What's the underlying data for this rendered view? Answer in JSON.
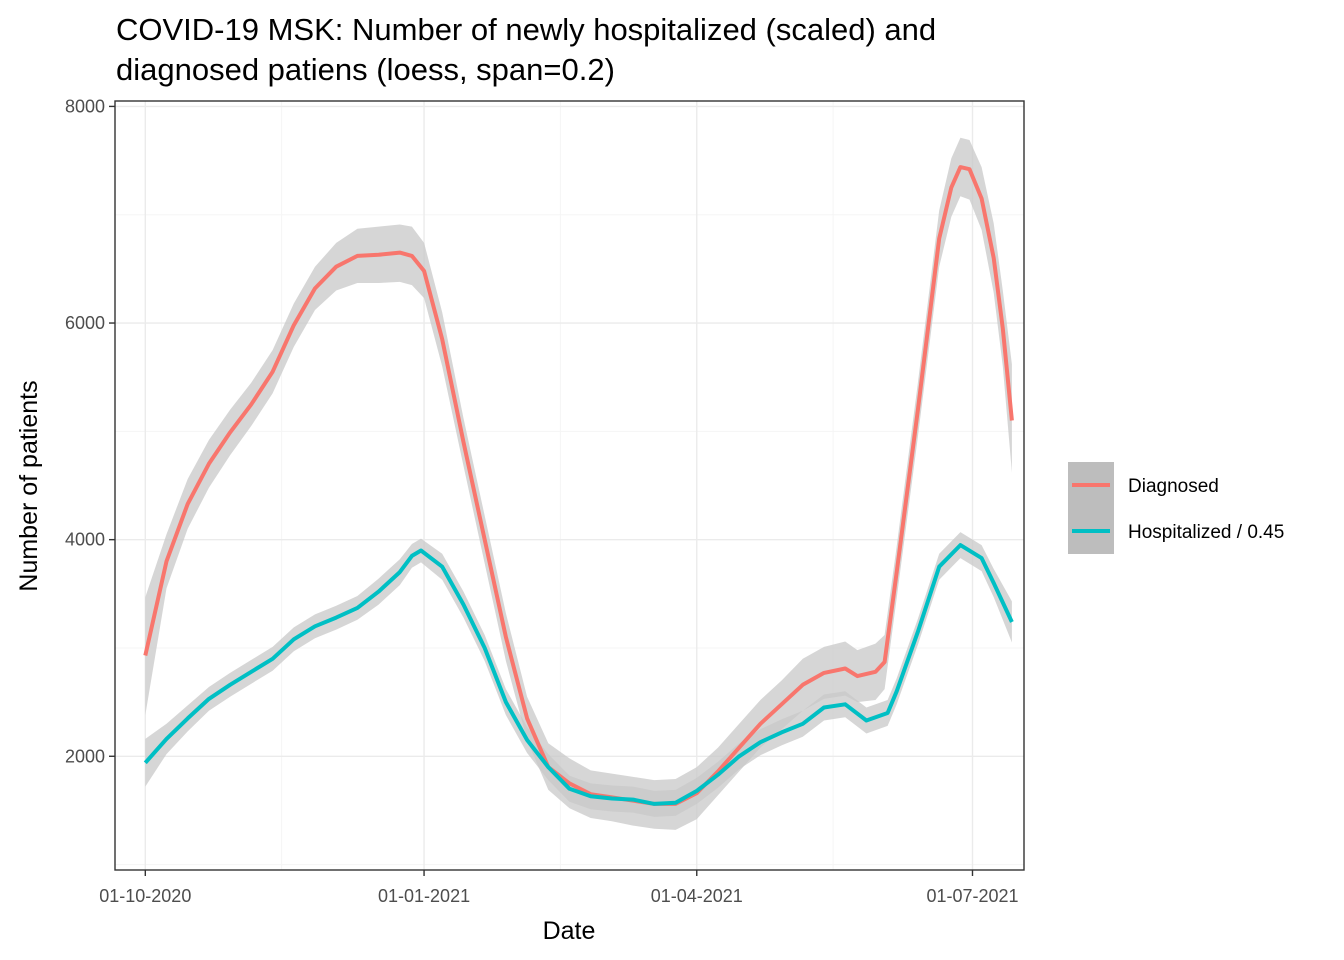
{
  "chart_data": {
    "type": "line",
    "title_lines": [
      "COVID-19 MSK: Number of newly hospitalized (scaled) and",
      "diagnosed patiens (loess, span=0.2)"
    ],
    "xlabel": "Date",
    "ylabel": "Number of patients",
    "xlim": [
      "2020-09-21",
      "2021-07-18"
    ],
    "ylim": [
      950,
      8050
    ],
    "x_ticks": [
      {
        "date": "2020-10-01",
        "label": "01-10-2020"
      },
      {
        "date": "2021-01-01",
        "label": "01-01-2021"
      },
      {
        "date": "2021-04-01",
        "label": "01-04-2021"
      },
      {
        "date": "2021-07-01",
        "label": "01-07-2021"
      }
    ],
    "x_minor_ticks": [
      "2020-11-15",
      "2021-02-15",
      "2021-05-16"
    ],
    "y_ticks": [
      2000,
      4000,
      6000,
      8000
    ],
    "y_minor_ticks": [
      1000,
      3000,
      5000,
      7000
    ],
    "grid": true,
    "legend_position": "right",
    "series": [
      {
        "name": "Diagnosed",
        "color": "#F8766D",
        "points": [
          [
            "2020-10-01",
            2930,
            2380,
            3470
          ],
          [
            "2020-10-08",
            3800,
            3550,
            4050
          ],
          [
            "2020-10-15",
            4330,
            4100,
            4560
          ],
          [
            "2020-10-22",
            4700,
            4480,
            4920
          ],
          [
            "2020-10-29",
            4990,
            4780,
            5200
          ],
          [
            "2020-11-05",
            5250,
            5050,
            5450
          ],
          [
            "2020-11-12",
            5550,
            5350,
            5750
          ],
          [
            "2020-11-19",
            5980,
            5780,
            6180
          ],
          [
            "2020-11-26",
            6320,
            6120,
            6520
          ],
          [
            "2020-12-03",
            6520,
            6300,
            6740
          ],
          [
            "2020-12-10",
            6620,
            6370,
            6870
          ],
          [
            "2020-12-17",
            6630,
            6370,
            6890
          ],
          [
            "2020-12-24",
            6650,
            6380,
            6910
          ],
          [
            "2020-12-28",
            6620,
            6350,
            6890
          ],
          [
            "2021-01-01",
            6480,
            6230,
            6740
          ],
          [
            "2021-01-07",
            5850,
            5600,
            6100
          ],
          [
            "2021-01-14",
            4900,
            4680,
            5120
          ],
          [
            "2021-01-21",
            4000,
            3780,
            4220
          ],
          [
            "2021-01-28",
            3100,
            2880,
            3320
          ],
          [
            "2021-02-04",
            2350,
            2150,
            2550
          ],
          [
            "2021-02-11",
            1900,
            1690,
            2120
          ],
          [
            "2021-02-18",
            1750,
            1520,
            1980
          ],
          [
            "2021-02-25",
            1650,
            1430,
            1870
          ],
          [
            "2021-03-04",
            1620,
            1400,
            1840
          ],
          [
            "2021-03-11",
            1590,
            1360,
            1810
          ],
          [
            "2021-03-18",
            1560,
            1330,
            1780
          ],
          [
            "2021-03-25",
            1560,
            1320,
            1790
          ],
          [
            "2021-04-01",
            1660,
            1420,
            1900
          ],
          [
            "2021-04-08",
            1860,
            1640,
            2080
          ],
          [
            "2021-04-15",
            2080,
            1860,
            2300
          ],
          [
            "2021-04-22",
            2300,
            2080,
            2520
          ],
          [
            "2021-04-29",
            2480,
            2250,
            2700
          ],
          [
            "2021-05-06",
            2660,
            2420,
            2900
          ],
          [
            "2021-05-13",
            2770,
            2530,
            3010
          ],
          [
            "2021-05-20",
            2810,
            2560,
            3060
          ],
          [
            "2021-05-24",
            2740,
            2500,
            2980
          ],
          [
            "2021-05-30",
            2780,
            2520,
            3040
          ],
          [
            "2021-06-02",
            2870,
            2620,
            3120
          ],
          [
            "2021-06-06",
            3700,
            3460,
            3940
          ],
          [
            "2021-06-13",
            5200,
            4950,
            5450
          ],
          [
            "2021-06-20",
            6780,
            6520,
            7040
          ],
          [
            "2021-06-24",
            7250,
            6980,
            7520
          ],
          [
            "2021-06-27",
            7440,
            7170,
            7710
          ],
          [
            "2021-06-30",
            7420,
            7140,
            7690
          ],
          [
            "2021-07-04",
            7150,
            6860,
            7440
          ],
          [
            "2021-07-08",
            6600,
            6280,
            6920
          ],
          [
            "2021-07-11",
            5950,
            5600,
            6300
          ],
          [
            "2021-07-14",
            5100,
            4620,
            5620
          ]
        ]
      },
      {
        "name": "Hospitalized / 0.45",
        "color": "#00BFC4",
        "points": [
          [
            "2020-10-01",
            1940,
            1720,
            2160
          ],
          [
            "2020-10-08",
            2160,
            2020,
            2300
          ],
          [
            "2020-10-15",
            2350,
            2230,
            2470
          ],
          [
            "2020-10-22",
            2530,
            2420,
            2640
          ],
          [
            "2020-10-29",
            2660,
            2550,
            2770
          ],
          [
            "2020-11-05",
            2780,
            2670,
            2890
          ],
          [
            "2020-11-12",
            2900,
            2790,
            3010
          ],
          [
            "2020-11-19",
            3080,
            2970,
            3190
          ],
          [
            "2020-11-26",
            3200,
            3090,
            3310
          ],
          [
            "2020-12-03",
            3280,
            3170,
            3390
          ],
          [
            "2020-12-10",
            3370,
            3260,
            3480
          ],
          [
            "2020-12-17",
            3520,
            3400,
            3640
          ],
          [
            "2020-12-24",
            3700,
            3580,
            3820
          ],
          [
            "2020-12-28",
            3850,
            3740,
            3960
          ],
          [
            "2020-12-31",
            3900,
            3790,
            4010
          ],
          [
            "2021-01-07",
            3750,
            3630,
            3870
          ],
          [
            "2021-01-14",
            3400,
            3280,
            3520
          ],
          [
            "2021-01-21",
            3000,
            2880,
            3120
          ],
          [
            "2021-01-28",
            2500,
            2380,
            2620
          ],
          [
            "2021-02-04",
            2150,
            2030,
            2270
          ],
          [
            "2021-02-11",
            1900,
            1780,
            2020
          ],
          [
            "2021-02-18",
            1700,
            1580,
            1820
          ],
          [
            "2021-02-25",
            1630,
            1510,
            1750
          ],
          [
            "2021-03-04",
            1610,
            1490,
            1730
          ],
          [
            "2021-03-11",
            1600,
            1480,
            1720
          ],
          [
            "2021-03-18",
            1560,
            1440,
            1680
          ],
          [
            "2021-03-25",
            1570,
            1450,
            1690
          ],
          [
            "2021-04-01",
            1680,
            1560,
            1800
          ],
          [
            "2021-04-08",
            1830,
            1710,
            1950
          ],
          [
            "2021-04-15",
            2000,
            1880,
            2120
          ],
          [
            "2021-04-22",
            2130,
            2010,
            2250
          ],
          [
            "2021-04-29",
            2220,
            2100,
            2340
          ],
          [
            "2021-05-06",
            2300,
            2180,
            2420
          ],
          [
            "2021-05-13",
            2450,
            2330,
            2570
          ],
          [
            "2021-05-20",
            2480,
            2360,
            2600
          ],
          [
            "2021-05-27",
            2330,
            2210,
            2450
          ],
          [
            "2021-06-03",
            2400,
            2280,
            2520
          ],
          [
            "2021-06-06",
            2600,
            2480,
            2720
          ],
          [
            "2021-06-13",
            3150,
            3030,
            3270
          ],
          [
            "2021-06-20",
            3750,
            3630,
            3870
          ],
          [
            "2021-06-27",
            3950,
            3830,
            4070
          ],
          [
            "2021-07-04",
            3830,
            3710,
            3950
          ],
          [
            "2021-07-08",
            3600,
            3470,
            3730
          ],
          [
            "2021-07-14",
            3240,
            3050,
            3430
          ]
        ]
      }
    ]
  },
  "colors": {
    "ribbon": "#c8c8c8",
    "panel_border": "#333333",
    "grid_major": "#ebebeb",
    "grid_minor": "#f5f5f5",
    "legend_key_bg": "#bdbdbd"
  }
}
